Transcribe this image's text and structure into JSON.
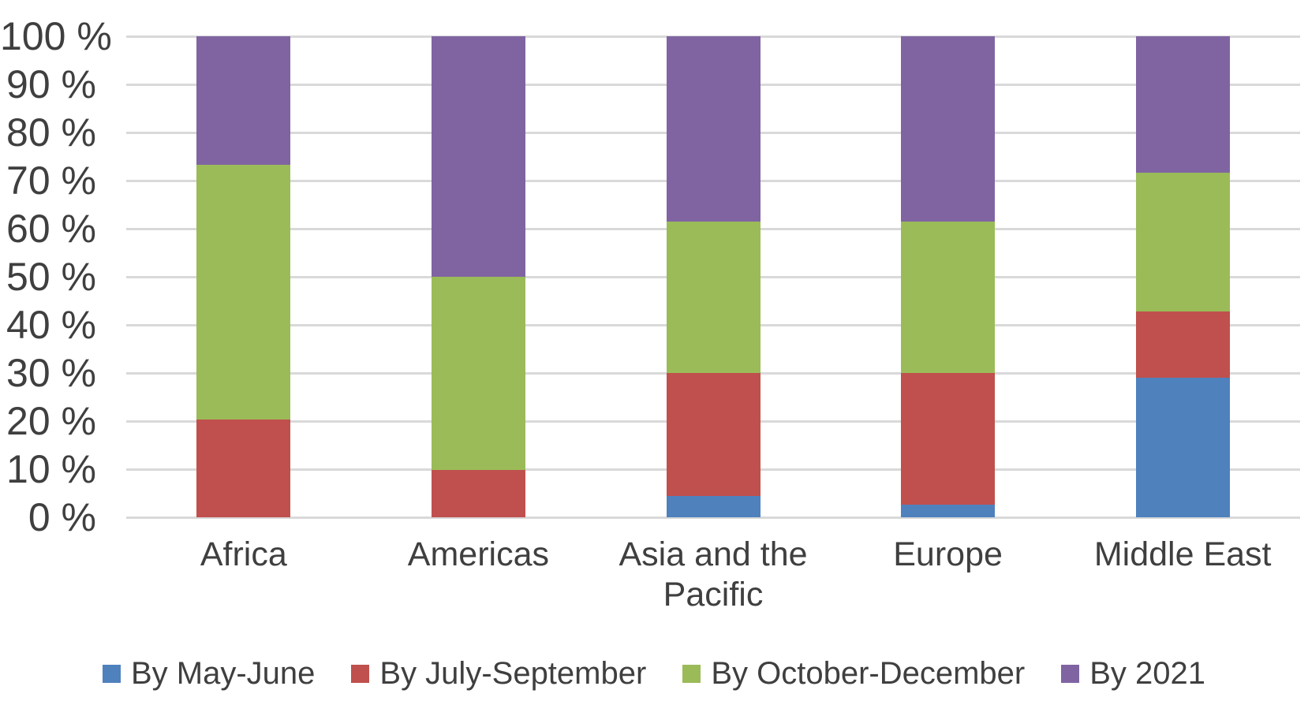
{
  "chart_data": {
    "type": "bar",
    "subtype": "stacked-100-percent-column",
    "title": "",
    "xlabel": "",
    "ylabel": "",
    "background_color": "#FFFFFF",
    "text_color": "#3F3F3F",
    "grid": true,
    "gridline_color": "#D9D9D9",
    "legend_position": "bottom",
    "categories": [
      "Africa",
      "Americas",
      "Asia and the Pacific",
      "Europe",
      "Middle East"
    ],
    "series": [
      {
        "name": "By May-June",
        "color": "#4F81BD",
        "values": [
          0,
          0,
          4.5,
          2.7,
          29.0
        ]
      },
      {
        "name": "By July-September",
        "color": "#C0504D",
        "values": [
          20.4,
          9.8,
          25.5,
          27.3,
          13.8
        ]
      },
      {
        "name": "By October-December",
        "color": "#9BBB59",
        "values": [
          52.9,
          40.2,
          31.5,
          31.5,
          28.9
        ]
      },
      {
        "name": "By 2021",
        "color": "#8064A2",
        "values": [
          26.7,
          50.0,
          38.5,
          38.5,
          28.3
        ]
      }
    ],
    "y_axis": {
      "min": 0,
      "max": 100,
      "tick_step": 10,
      "tick_labels": [
        "0 %",
        "10 %",
        "20 %",
        "30 %",
        "40 %",
        "50 %",
        "60 %",
        "70 %",
        "80 %",
        "90 %",
        "100 %"
      ]
    }
  }
}
